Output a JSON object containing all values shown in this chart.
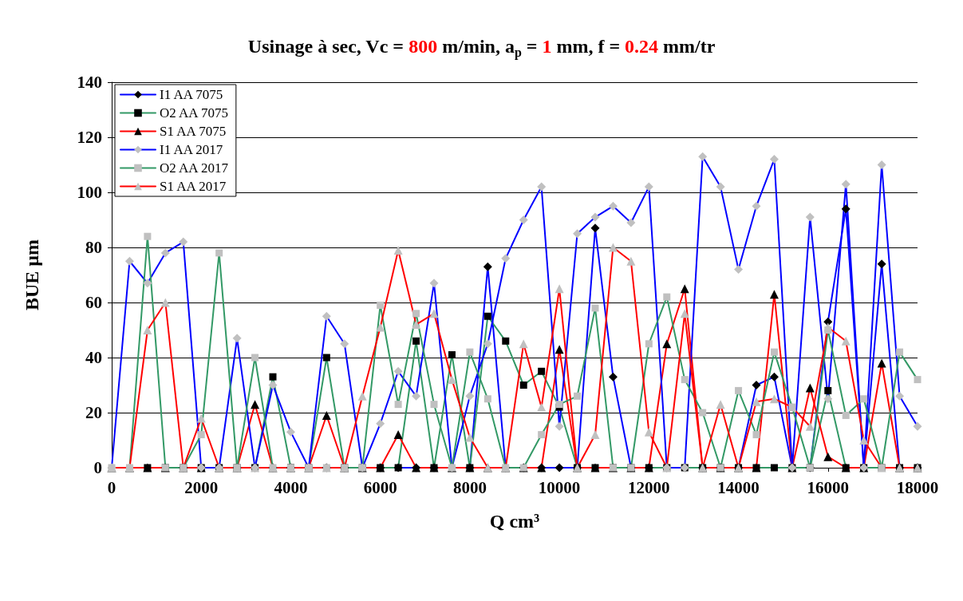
{
  "chart_data": {
    "type": "line",
    "title": "Usinage à sec, Vc = 800 m/min, a$_{p}$ = 1 mm, f = 0.24 mm/tr",
    "xlabel": "Q cm³",
    "ylabel": "BUE µm",
    "x": [
      0,
      400,
      800,
      1200,
      1600,
      2000,
      2400,
      2800,
      3200,
      3600,
      4000,
      4400,
      4800,
      5200,
      5600,
      6000,
      6400,
      6800,
      7200,
      7600,
      8000,
      8400,
      8800,
      9200,
      9600,
      10000,
      10400,
      10800,
      11200,
      11600,
      12000,
      12400,
      12800,
      13200,
      13600,
      14000,
      14400,
      14800,
      15200,
      15600,
      16000,
      16400,
      16800,
      17200,
      17600,
      18000
    ],
    "xlim": [
      0,
      18000
    ],
    "xticks": [
      0,
      2000,
      4000,
      6000,
      8000,
      10000,
      12000,
      14000,
      16000,
      18000
    ],
    "ylim": [
      0,
      140
    ],
    "yticks": [
      0,
      20,
      40,
      60,
      80,
      100,
      120,
      140
    ],
    "grid": "y",
    "legend": "top left",
    "series": [
      {
        "name": "I1 AA 7075",
        "color": "#0000ff",
        "marker": "diamond",
        "colors": [
          "#000000",
          "#000000",
          "#000000",
          "#000000",
          "#000000",
          "#000000",
          "#000000",
          "#000000",
          "#000000",
          "#000000",
          "#000000",
          "#000000",
          "#000000",
          "#000000",
          "#000000",
          "#000000",
          "#000000",
          "#000000",
          "#000000",
          "#000000",
          "#000000",
          "#000000",
          "#000000",
          "#000000",
          "#000000",
          "#000000",
          "#000000",
          "#000000",
          "#000000",
          "#000000",
          "#000000",
          "#000000",
          "#000000",
          "#000000",
          "#000000",
          "#000000",
          "#000000",
          "#000000",
          "#000000",
          "#000000",
          "#000000",
          "#000000",
          "#000000",
          "#000000",
          "#000000",
          "#000000"
        ],
        "values": [
          null,
          null,
          null,
          null,
          0,
          0,
          0,
          0,
          0,
          0,
          0,
          0,
          0,
          0,
          0,
          0,
          0,
          0,
          0,
          0,
          0,
          73,
          0,
          0,
          0,
          0,
          0,
          87,
          33,
          0,
          0,
          0,
          0,
          0,
          0,
          0,
          30,
          33,
          0,
          0,
          53,
          94,
          0,
          74,
          0,
          0
        ]
      },
      {
        "name": "O2 AA 7075",
        "color": "#339966",
        "marker": "square",
        "colors": [
          "#000000",
          "#000000",
          "#000000",
          "#000000",
          "#000000",
          "#000000",
          "#000000",
          "#000000",
          "#000000",
          "#000000",
          "#000000",
          "#000000",
          "#000000",
          "#000000",
          "#000000",
          "#000000",
          "#000000",
          "#000000",
          "#000000",
          "#000000",
          "#000000",
          "#000000",
          "#000000",
          "#000000",
          "#000000",
          "#000000",
          "#000000",
          "#000000",
          "#000000",
          "#000000",
          "#000000",
          "#000000",
          "#000000",
          "#000000",
          "#000000",
          "#000000",
          "#000000",
          "#000000",
          "#000000",
          "#000000",
          "#000000",
          "#000000",
          "#000000",
          "#000000",
          "#000000",
          "#000000"
        ],
        "values": [
          null,
          null,
          0,
          0,
          0,
          0,
          0,
          0,
          0,
          33,
          0,
          0,
          40,
          0,
          0,
          0,
          0,
          46,
          0,
          41,
          0,
          55,
          46,
          30,
          35,
          22,
          0,
          0,
          0,
          0,
          0,
          0,
          0,
          0,
          0,
          0,
          0,
          0,
          0,
          0,
          28,
          0,
          0,
          0,
          0,
          0
        ]
      },
      {
        "name": "S1 AA 7075",
        "color": "#ff0000",
        "marker": "triangle",
        "colors": [
          "#000000",
          "#000000",
          "#000000",
          "#000000",
          "#000000",
          "#000000",
          "#000000",
          "#000000",
          "#000000",
          "#000000",
          "#000000",
          "#000000",
          "#000000",
          "#000000",
          "#000000",
          "#000000",
          "#000000",
          "#000000",
          "#000000",
          "#000000",
          "#000000",
          "#000000",
          "#000000",
          "#000000",
          "#000000",
          "#000000",
          "#000000",
          "#000000",
          "#000000",
          "#000000",
          "#000000",
          "#000000",
          "#000000",
          "#000000",
          "#000000",
          "#000000",
          "#000000",
          "#000000",
          "#000000",
          "#000000",
          "#000000",
          "#000000",
          "#000000",
          "#000000",
          "#000000",
          "#000000"
        ],
        "values": [
          0,
          0,
          0,
          0,
          0,
          0,
          0,
          0,
          23,
          0,
          0,
          0,
          19,
          0,
          0,
          0,
          12,
          0,
          0,
          0,
          0,
          0,
          0,
          0,
          0,
          43,
          0,
          0,
          0,
          0,
          0,
          45,
          65,
          0,
          0,
          0,
          0,
          63,
          0,
          29,
          4,
          0,
          0,
          38,
          0,
          0
        ]
      },
      {
        "name": "I1 AA 2017",
        "color": "#0000ff",
        "marker": "diamond",
        "colors": [
          "#c0c0c0",
          "#c0c0c0",
          "#c0c0c0",
          "#c0c0c0",
          "#c0c0c0",
          "#c0c0c0",
          "#c0c0c0",
          "#c0c0c0",
          "#c0c0c0",
          "#c0c0c0",
          "#c0c0c0",
          "#c0c0c0",
          "#c0c0c0",
          "#c0c0c0",
          "#c0c0c0",
          "#c0c0c0",
          "#c0c0c0",
          "#c0c0c0",
          "#c0c0c0",
          "#c0c0c0",
          "#c0c0c0",
          "#c0c0c0",
          "#c0c0c0",
          "#c0c0c0",
          "#c0c0c0",
          "#c0c0c0",
          "#c0c0c0",
          "#c0c0c0",
          "#c0c0c0",
          "#c0c0c0",
          "#c0c0c0",
          "#c0c0c0",
          "#c0c0c0",
          "#c0c0c0",
          "#c0c0c0",
          "#c0c0c0",
          "#c0c0c0",
          "#c0c0c0",
          "#c0c0c0",
          "#c0c0c0",
          "#c0c0c0",
          "#c0c0c0",
          "#c0c0c0",
          "#c0c0c0",
          "#c0c0c0",
          "#c0c0c0"
        ],
        "values": [
          0,
          75,
          67,
          78,
          82,
          0,
          0,
          47,
          0,
          30,
          13,
          0,
          55,
          45,
          0,
          16,
          35,
          26,
          67,
          0,
          26,
          45,
          76,
          90,
          102,
          15,
          85,
          91,
          95,
          89,
          102,
          0,
          0,
          113,
          102,
          72,
          95,
          112,
          0,
          91,
          25,
          103,
          0,
          110,
          26,
          15
        ]
      },
      {
        "name": "O2 AA 2017",
        "color": "#339966",
        "marker": "square",
        "colors": [
          "#c0c0c0",
          "#c0c0c0",
          "#c0c0c0",
          "#c0c0c0",
          "#c0c0c0",
          "#c0c0c0",
          "#c0c0c0",
          "#c0c0c0",
          "#c0c0c0",
          "#c0c0c0",
          "#c0c0c0",
          "#c0c0c0",
          "#c0c0c0",
          "#c0c0c0",
          "#c0c0c0",
          "#c0c0c0",
          "#c0c0c0",
          "#c0c0c0",
          "#c0c0c0",
          "#c0c0c0",
          "#c0c0c0",
          "#c0c0c0",
          "#c0c0c0",
          "#c0c0c0",
          "#c0c0c0",
          "#c0c0c0",
          "#c0c0c0",
          "#c0c0c0",
          "#c0c0c0",
          "#c0c0c0",
          "#c0c0c0",
          "#c0c0c0",
          "#c0c0c0",
          "#c0c0c0",
          "#c0c0c0",
          "#c0c0c0",
          "#c0c0c0",
          "#c0c0c0",
          "#c0c0c0",
          "#c0c0c0",
          "#c0c0c0",
          "#c0c0c0",
          "#c0c0c0",
          "#c0c0c0",
          "#c0c0c0",
          "#c0c0c0"
        ],
        "values": [
          0,
          0,
          84,
          0,
          0,
          12,
          78,
          0,
          40,
          0,
          0,
          0,
          0,
          0,
          0,
          59,
          23,
          56,
          23,
          0,
          42,
          25,
          0,
          0,
          12,
          23,
          26,
          58,
          0,
          0,
          45,
          62,
          32,
          20,
          0,
          28,
          12,
          42,
          22,
          0,
          50,
          19,
          25,
          0,
          42,
          32
        ]
      },
      {
        "name": "S1 AA 2017",
        "color": "#ff0000",
        "marker": "triangle",
        "colors": [
          "#c0c0c0",
          "#c0c0c0",
          "#c0c0c0",
          "#c0c0c0",
          "#c0c0c0",
          "#c0c0c0",
          "#c0c0c0",
          "#c0c0c0",
          "#c0c0c0",
          "#c0c0c0",
          "#c0c0c0",
          "#c0c0c0",
          "#c0c0c0",
          "#c0c0c0",
          "#c0c0c0",
          "#c0c0c0",
          "#c0c0c0",
          "#c0c0c0",
          "#c0c0c0",
          "#c0c0c0",
          "#c0c0c0",
          "#c0c0c0",
          "#c0c0c0",
          "#c0c0c0",
          "#c0c0c0",
          "#c0c0c0",
          "#c0c0c0",
          "#c0c0c0",
          "#c0c0c0",
          "#c0c0c0",
          "#c0c0c0",
          "#c0c0c0",
          "#c0c0c0",
          "#c0c0c0",
          "#c0c0c0",
          "#c0c0c0",
          "#c0c0c0",
          "#c0c0c0",
          "#c0c0c0",
          "#c0c0c0",
          "#c0c0c0",
          "#c0c0c0",
          "#c0c0c0",
          "#c0c0c0",
          "#c0c0c0",
          "#c0c0c0"
        ],
        "values": [
          0,
          0,
          50,
          60,
          0,
          18,
          0,
          0,
          0,
          0,
          0,
          0,
          0,
          0,
          26,
          51,
          79,
          52,
          56,
          32,
          11,
          0,
          0,
          45,
          22,
          65,
          0,
          12,
          80,
          75,
          13,
          0,
          56,
          0,
          23,
          0,
          24,
          25,
          22,
          15,
          51,
          46,
          10,
          0,
          0,
          0
        ]
      }
    ]
  }
}
